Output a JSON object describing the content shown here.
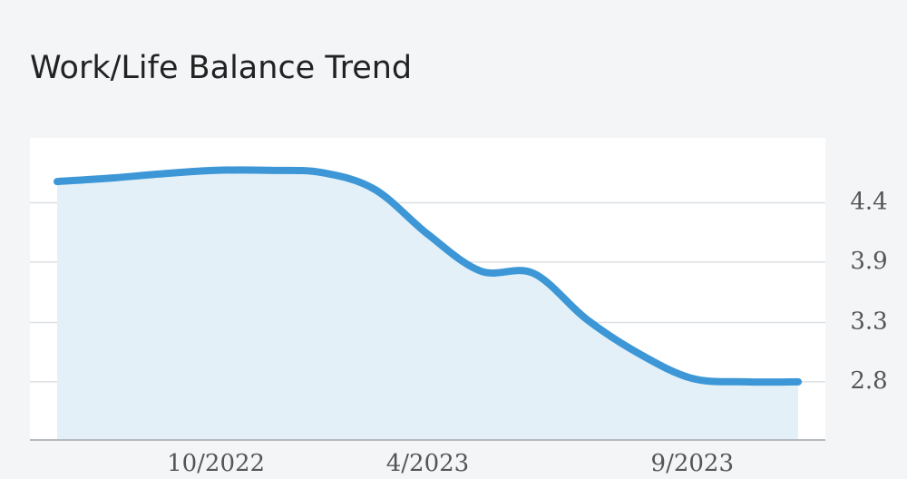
{
  "chart_data": {
    "type": "area-line",
    "title": "Work/Life Balance Trend",
    "categories": [
      null,
      null,
      null,
      "10/2022",
      null,
      null,
      null,
      "4/2023",
      null,
      null,
      null,
      null,
      "9/2023",
      null,
      null
    ],
    "values": [
      4.59,
      4.62,
      4.66,
      4.69,
      4.69,
      4.67,
      4.52,
      4.12,
      3.79,
      3.77,
      3.36,
      3.05,
      2.83,
      2.8,
      2.8
    ],
    "color": "#3d97d6",
    "fill": "#e3f0f8",
    "ylim": [
      2.28,
      4.98
    ],
    "yticks": [
      {
        "value": 2.8,
        "label": "2.8"
      },
      {
        "value": 3.33,
        "label": "3.3"
      },
      {
        "value": 3.87,
        "label": "3.9"
      },
      {
        "value": 4.4,
        "label": "4.4"
      }
    ],
    "grid": true
  }
}
